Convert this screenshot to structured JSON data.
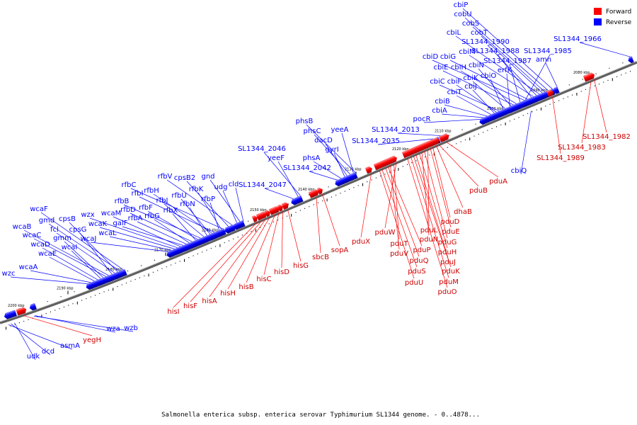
{
  "caption": "Salmonella enterica subsp. enterica serovar Typhimurium SL1344 genome. - 0..4878...",
  "legend": [
    {
      "label": "Forward",
      "color": "#ff0000"
    },
    {
      "label": "Reverse",
      "color": "#0000ff"
    }
  ],
  "colors": {
    "forward": "#ff0000",
    "reverse": "#0000ff",
    "backbone": "#808080"
  },
  "ticks": [
    "2080 kbp",
    "2090 kbp",
    "2100 kbp",
    "2110 kbp",
    "2120 kbp",
    "2130 kbp",
    "2140 kbp",
    "2150 kbp",
    "2160 kbp",
    "2170 kbp",
    "2180 kbp",
    "2190 kbp",
    "2200 kbp"
  ],
  "reverse_genes": [
    "SL1344_1966",
    "cbiP",
    "cobU",
    "cobS",
    "cobT",
    "cbiL",
    "SL1344_1990",
    "cbiM",
    "SL1344_1988",
    "cbiG",
    "cbiD",
    "SL1344_1985",
    "SL1344_1987",
    "cbiH",
    "cbiE",
    "cbiN",
    "amn",
    "erfK",
    "cbiK",
    "cbiO",
    "cbiC",
    "cbiF",
    "cbiJ",
    "cbiT",
    "cbiB",
    "cbiA",
    "pocR",
    "SL1344_2013",
    "SL1344_2035",
    "cbiQ",
    "phsB",
    "yeeA",
    "phsC",
    "dacD",
    "gyrI",
    "phsA",
    "SL1344_2042",
    "SL1344_2046",
    "yeeF",
    "SL1344_2047",
    "cld",
    "gnd",
    "udg",
    "rfbV",
    "cpsB2",
    "rfbC",
    "rfbK",
    "rfbP",
    "rfbI",
    "rfbH",
    "rfbU",
    "rfbN",
    "rfbJ",
    "rfbB",
    "rfbF",
    "rfbX",
    "rfbD",
    "rfbG",
    "rfbA",
    "galF",
    "wcaM",
    "wzx",
    "wcaK",
    "wcaL",
    "wcaJ",
    "wcaF",
    "gmd",
    "cpsB",
    "fcl",
    "cpsG",
    "wcaB",
    "wcaC",
    "gmm",
    "wcaI",
    "wcaD",
    "wcaE",
    "wcaA",
    "wzc",
    "wza",
    "wzb",
    "udk",
    "dcd",
    "asmA"
  ],
  "forward_genes": [
    "SL1344_1982",
    "SL1344_1983",
    "SL1344_1989",
    "pduA",
    "pduB",
    "dhaB",
    "pduD",
    "pduE",
    "pduL",
    "pduG",
    "pduN",
    "pduH",
    "pduJ",
    "pduK",
    "pduM",
    "pduO",
    "pduW",
    "pduT",
    "pduV",
    "pduP",
    "pduQ",
    "pduS",
    "pduU",
    "pduX",
    "sopA",
    "sbcB",
    "hisG",
    "hisD",
    "hisC",
    "hisB",
    "hisH",
    "hisA",
    "hisF",
    "hisI",
    "yegH"
  ]
}
